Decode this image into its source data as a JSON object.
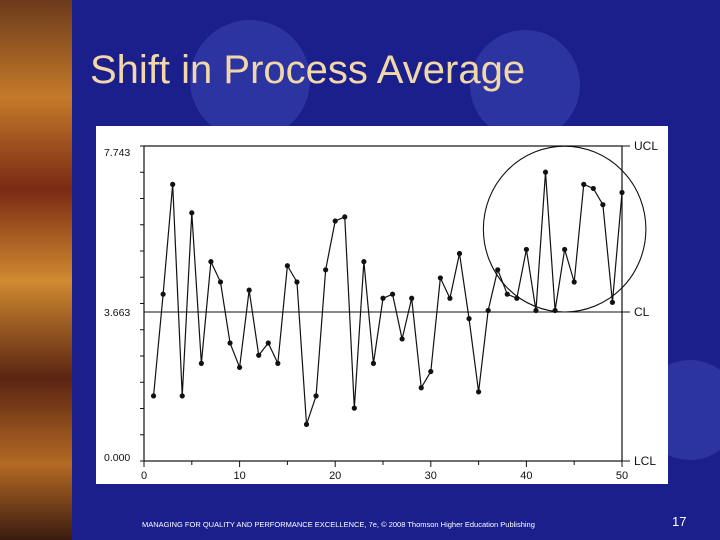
{
  "slide": {
    "title": "Shift in Process Average",
    "footer": "MANAGING FOR QUALITY AND PERFORMANCE EXCELLENCE, 7e, © 2008 Thomson Higher Education Publishing",
    "page_number": "17"
  },
  "colors": {
    "background": "#1a1f8c",
    "title": "#f2d8a8",
    "chart_ink": "#111111"
  },
  "chart_data": {
    "type": "line",
    "title": "",
    "xlabel": "",
    "ylabel": "",
    "xlim": [
      0,
      50
    ],
    "ylim": [
      0,
      7.743
    ],
    "x_ticks": [
      "0",
      "10",
      "20",
      "30",
      "40",
      "50"
    ],
    "y_tick_labels": [
      "7.743",
      "3.663",
      "0.000"
    ],
    "control_lines": [
      {
        "label": "UCL",
        "value": 7.743
      },
      {
        "label": "CL",
        "value": 3.663
      },
      {
        "label": "LCL",
        "value": 0.0
      }
    ],
    "series": [
      {
        "x": [
          1,
          2,
          3,
          4,
          5,
          6,
          7,
          8,
          9,
          10,
          11,
          12,
          13,
          14,
          15,
          16,
          17,
          18,
          19,
          20,
          21,
          22,
          23,
          24,
          25,
          26,
          27,
          28,
          29,
          30,
          31,
          32,
          33,
          34,
          35,
          36,
          37,
          38,
          39,
          40,
          41,
          42,
          43,
          44,
          45,
          46,
          47,
          48,
          49,
          50
        ],
        "values": [
          1.6,
          4.1,
          6.8,
          1.6,
          6.1,
          2.4,
          4.9,
          4.4,
          2.9,
          2.3,
          4.2,
          2.6,
          2.9,
          2.4,
          4.8,
          4.4,
          0.9,
          1.6,
          4.7,
          5.9,
          6.0,
          1.3,
          4.9,
          2.4,
          4.0,
          4.1,
          3.0,
          4.0,
          1.8,
          2.2,
          4.5,
          4.0,
          5.1,
          3.5,
          1.7,
          3.7,
          4.7,
          4.1,
          4.0,
          5.2,
          3.7,
          7.1,
          3.7,
          5.2,
          4.4,
          6.8,
          6.7,
          6.3,
          3.9,
          6.6
        ]
      }
    ],
    "annotations": [
      {
        "type": "circle",
        "description_label": "",
        "x_range": [
          35.5,
          52.5
        ]
      }
    ]
  }
}
